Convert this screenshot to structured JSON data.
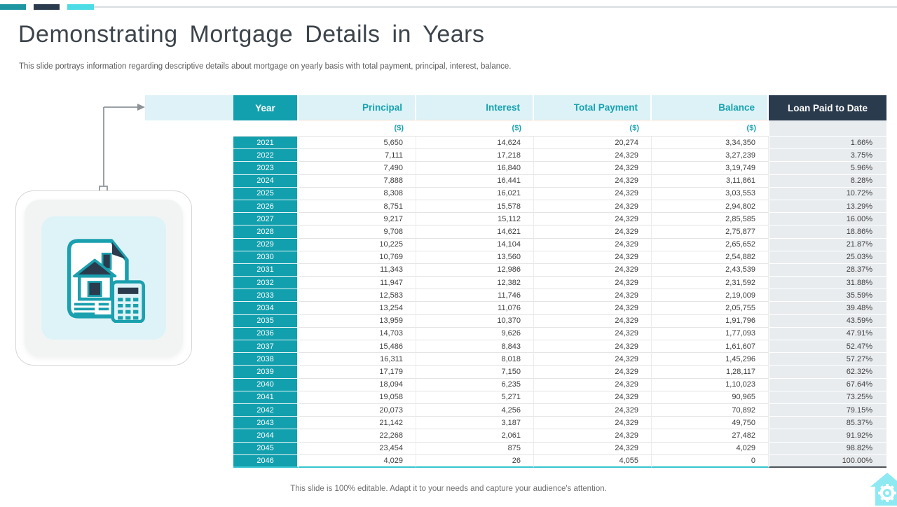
{
  "colors": {
    "teal": "#13a0ae",
    "navy": "#2a3b4d",
    "cyan_accent": "#4cdce5",
    "header_light_cyan": "#dcf2f6",
    "loan_cell_grey": "#e9ecef",
    "icon_card_cyan": "#def3f7"
  },
  "header": {
    "title": "Demonstrating Mortgage Details in Years",
    "subtitle": "This slide portrays information regarding descriptive details about mortgage on yearly basis with total payment, principal, interest, balance."
  },
  "table": {
    "columns": [
      "Year",
      "Principal",
      "Interest",
      "Total Payment",
      "Balance",
      "Loan Paid to Date"
    ],
    "column_keys": [
      "year",
      "principal",
      "interest",
      "total-payment",
      "balance",
      "loan-paid-to-date"
    ],
    "unit_row": [
      "",
      "($)",
      "($)",
      "($)",
      "($)",
      ""
    ],
    "rows": [
      [
        "2021",
        "5,650",
        "14,624",
        "20,274",
        "3,34,350",
        "1.66%"
      ],
      [
        "2022",
        "7,111",
        "17,218",
        "24,329",
        "3,27,239",
        "3.75%"
      ],
      [
        "2023",
        "7,490",
        "16,840",
        "24,329",
        "3,19,749",
        "5.96%"
      ],
      [
        "2024",
        "7,888",
        "16,441",
        "24,329",
        "3,11,861",
        "8.28%"
      ],
      [
        "2025",
        "8,308",
        "16,021",
        "24,329",
        "3,03,553",
        "10.72%"
      ],
      [
        "2026",
        "8,751",
        "15,578",
        "24,329",
        "2,94,802",
        "13.29%"
      ],
      [
        "2027",
        "9,217",
        "15,112",
        "24,329",
        "2,85,585",
        "16.00%"
      ],
      [
        "2028",
        "9,708",
        "14,621",
        "24,329",
        "2,75,877",
        "18.86%"
      ],
      [
        "2029",
        "10,225",
        "14,104",
        "24,329",
        "2,65,652",
        "21.87%"
      ],
      [
        "2030",
        "10,769",
        "13,560",
        "24,329",
        "2,54,882",
        "25.03%"
      ],
      [
        "2031",
        "11,343",
        "12,986",
        "24,329",
        "2,43,539",
        "28.37%"
      ],
      [
        "2032",
        "11,947",
        "12,382",
        "24,329",
        "2,31,592",
        "31.88%"
      ],
      [
        "2033",
        "12,583",
        "11,746",
        "24,329",
        "2,19,009",
        "35.59%"
      ],
      [
        "2034",
        "13,254",
        "11,076",
        "24,329",
        "2,05,755",
        "39.48%"
      ],
      [
        "2035",
        "13,959",
        "10,370",
        "24,329",
        "1,91,796",
        "43.59%"
      ],
      [
        "2036",
        "14,703",
        "9,626",
        "24,329",
        "1,77,093",
        "47.91%"
      ],
      [
        "2037",
        "15,486",
        "8,843",
        "24,329",
        "1,61,607",
        "52.47%"
      ],
      [
        "2038",
        "16,311",
        "8,018",
        "24,329",
        "1,45,296",
        "57.27%"
      ],
      [
        "2039",
        "17,179",
        "7,150",
        "24,329",
        "1,28,117",
        "62.32%"
      ],
      [
        "2040",
        "18,094",
        "6,235",
        "24,329",
        "1,10,023",
        "67.64%"
      ],
      [
        "2041",
        "19,058",
        "5,271",
        "24,329",
        "90,965",
        "73.25%"
      ],
      [
        "2042",
        "20,073",
        "4,256",
        "24,329",
        "70,892",
        "79.15%"
      ],
      [
        "2043",
        "21,142",
        "3,187",
        "24,329",
        "49,750",
        "85.37%"
      ],
      [
        "2044",
        "22,268",
        "2,061",
        "24,329",
        "27,482",
        "91.92%"
      ],
      [
        "2045",
        "23,454",
        "875",
        "24,329",
        "4,029",
        "98.82%"
      ],
      [
        "2046",
        "4,029",
        "26",
        "4,055",
        "0",
        "100.00%"
      ]
    ]
  },
  "footer": {
    "note": "This slide is 100% editable. Adapt it to your needs and capture your audience's attention."
  },
  "icons": {
    "left_graphic": "mortgage-document-house-calculator-icon",
    "bottom_right": "house-gear-logo"
  }
}
